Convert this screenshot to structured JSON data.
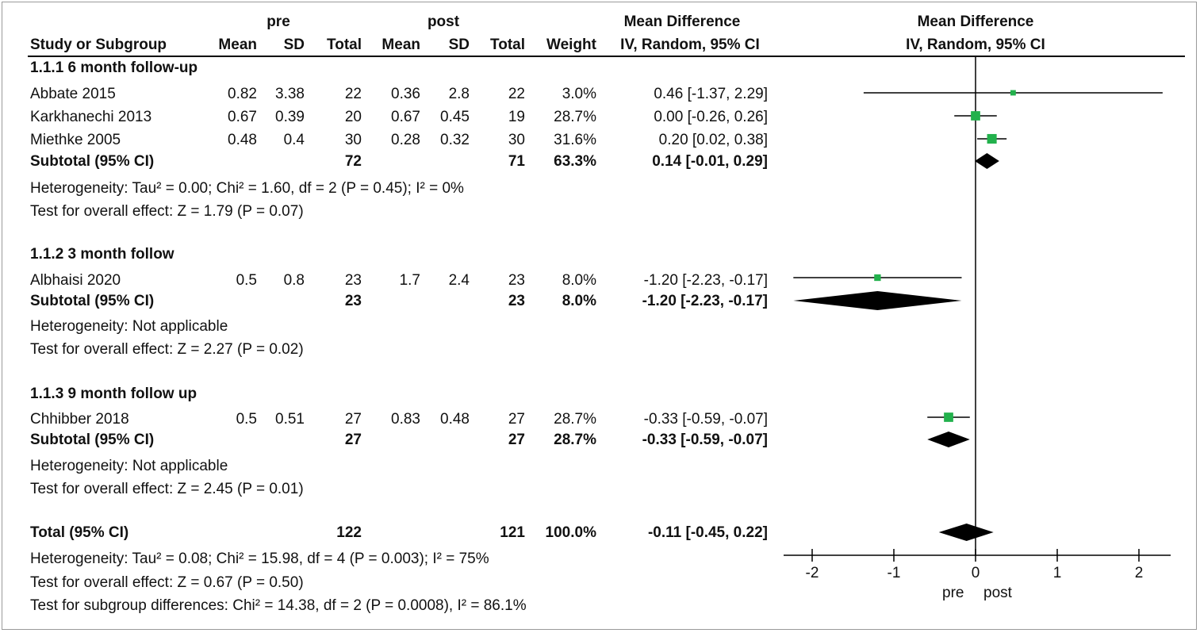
{
  "header": {
    "group1": "pre",
    "group2": "post",
    "effect_title": "Mean Difference",
    "effect_method": "IV, Random, 95% CI",
    "plot_title": "Mean Difference",
    "plot_method": "IV, Random, 95% CI",
    "col_study": "Study or Subgroup",
    "col_mean": "Mean",
    "col_sd": "SD",
    "col_total": "Total",
    "col_weight": "Weight"
  },
  "subgroups": [
    {
      "title": "1.1.1 6 month follow-up",
      "studies": [
        {
          "name": "Abbate 2015",
          "pre_mean": "0.82",
          "pre_sd": "3.38",
          "pre_total": "22",
          "post_mean": "0.36",
          "post_sd": "2.8",
          "post_total": "22",
          "weight": "3.0%",
          "ci": "0.46 [-1.37, 2.29]"
        },
        {
          "name": "Karkhanechi 2013",
          "pre_mean": "0.67",
          "pre_sd": "0.39",
          "pre_total": "20",
          "post_mean": "0.67",
          "post_sd": "0.45",
          "post_total": "19",
          "weight": "28.7%",
          "ci": "0.00 [-0.26, 0.26]"
        },
        {
          "name": "Miethke 2005",
          "pre_mean": "0.48",
          "pre_sd": "0.4",
          "pre_total": "30",
          "post_mean": "0.28",
          "post_sd": "0.32",
          "post_total": "30",
          "weight": "31.6%",
          "ci": "0.20 [0.02, 0.38]"
        }
      ],
      "subtotal": {
        "label": "Subtotal (95% CI)",
        "pre_total": "72",
        "post_total": "71",
        "weight": "63.3%",
        "ci": "0.14 [-0.01, 0.29]"
      },
      "heterogeneity": "Heterogeneity: Tau² = 0.00; Chi² = 1.60, df = 2 (P = 0.45); I² = 0%",
      "overall": "Test for overall effect: Z = 1.79 (P = 0.07)"
    },
    {
      "title": "1.1.2 3 month follow",
      "studies": [
        {
          "name": "Albhaisi 2020",
          "pre_mean": "0.5",
          "pre_sd": "0.8",
          "pre_total": "23",
          "post_mean": "1.7",
          "post_sd": "2.4",
          "post_total": "23",
          "weight": "8.0%",
          "ci": "-1.20 [-2.23, -0.17]"
        }
      ],
      "subtotal": {
        "label": "Subtotal (95% CI)",
        "pre_total": "23",
        "post_total": "23",
        "weight": "8.0%",
        "ci": "-1.20 [-2.23, -0.17]"
      },
      "heterogeneity": "Heterogeneity: Not applicable",
      "overall": "Test for overall effect: Z = 2.27 (P = 0.02)"
    },
    {
      "title": "1.1.3 9 month follow up",
      "studies": [
        {
          "name": "Chhibber 2018",
          "pre_mean": "0.5",
          "pre_sd": "0.51",
          "pre_total": "27",
          "post_mean": "0.83",
          "post_sd": "0.48",
          "post_total": "27",
          "weight": "28.7%",
          "ci": "-0.33 [-0.59, -0.07]"
        }
      ],
      "subtotal": {
        "label": "Subtotal (95% CI)",
        "pre_total": "27",
        "post_total": "27",
        "weight": "28.7%",
        "ci": "-0.33 [-0.59, -0.07]"
      },
      "heterogeneity": "Heterogeneity: Not applicable",
      "overall": "Test for overall effect: Z = 2.45 (P = 0.01)"
    }
  ],
  "total": {
    "label": "Total (95% CI)",
    "pre_total": "122",
    "post_total": "121",
    "weight": "100.0%",
    "ci": "-0.11 [-0.45, 0.22]",
    "heterogeneity": "Heterogeneity: Tau² = 0.08; Chi² = 15.98, df = 4 (P = 0.003); I² = 75%",
    "overall": "Test for overall effect: Z = 0.67 (P = 0.50)",
    "subgroup_diff": "Test for subgroup differences: Chi² = 14.38, df = 2 (P = 0.0008), I² = 86.1%"
  },
  "axis": {
    "ticks": [
      "-2",
      "-1",
      "0",
      "1",
      "2"
    ],
    "left_label": "pre",
    "right_label": "post"
  },
  "colors": {
    "square": "#22b14c",
    "diamond": "#000000",
    "line": "#000000"
  },
  "chart_data": {
    "type": "forest",
    "xlim": [
      -2.2,
      2.3
    ],
    "ticks": [
      -2,
      -1,
      0,
      1,
      2
    ],
    "studies": [
      {
        "name": "Abbate 2015",
        "md": 0.46,
        "lo": -1.37,
        "hi": 2.29,
        "weight": 3.0
      },
      {
        "name": "Karkhanechi 2013",
        "md": 0.0,
        "lo": -0.26,
        "hi": 0.26,
        "weight": 28.7
      },
      {
        "name": "Miethke 2005",
        "md": 0.2,
        "lo": 0.02,
        "hi": 0.38,
        "weight": 31.6
      },
      {
        "name": "Albhaisi 2020",
        "md": -1.2,
        "lo": -2.23,
        "hi": -0.17,
        "weight": 8.0
      },
      {
        "name": "Chhibber 2018",
        "md": -0.33,
        "lo": -0.59,
        "hi": -0.07,
        "weight": 28.7
      }
    ],
    "diamonds": [
      {
        "name": "Subtotal 1.1.1",
        "md": 0.14,
        "lo": -0.01,
        "hi": 0.29
      },
      {
        "name": "Subtotal 1.1.2",
        "md": -1.2,
        "lo": -2.23,
        "hi": -0.17
      },
      {
        "name": "Subtotal 1.1.3",
        "md": -0.33,
        "lo": -0.59,
        "hi": -0.07
      },
      {
        "name": "Total",
        "md": -0.11,
        "lo": -0.45,
        "hi": 0.22
      }
    ]
  }
}
